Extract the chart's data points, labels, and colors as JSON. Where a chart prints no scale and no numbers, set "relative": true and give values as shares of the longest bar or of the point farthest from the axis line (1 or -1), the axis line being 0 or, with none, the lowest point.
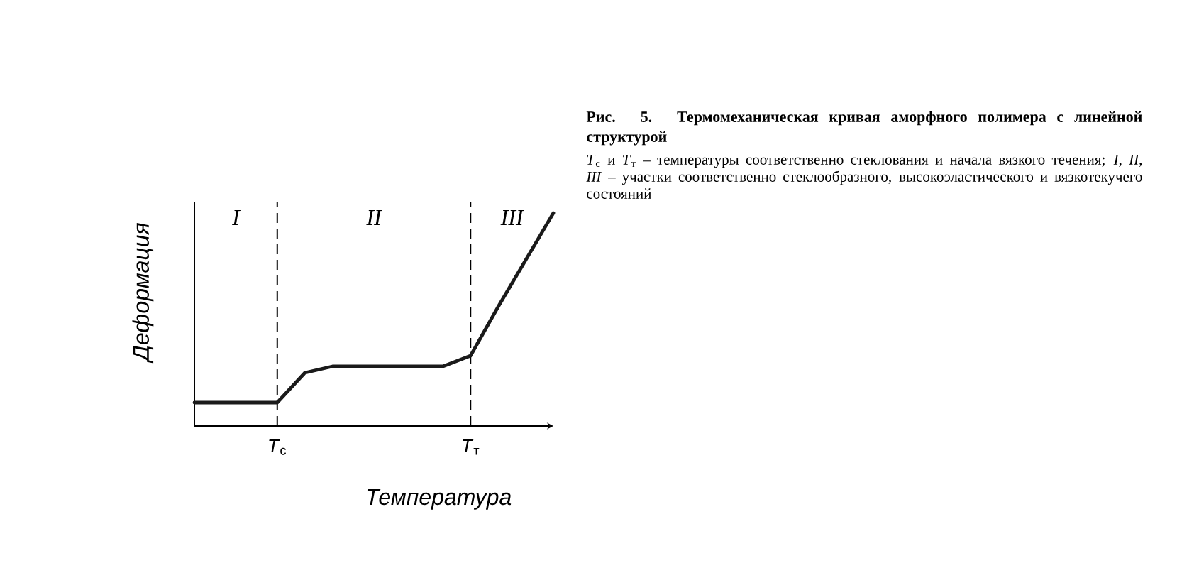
{
  "chart_data": {
    "type": "line",
    "title": "Рис. 5. Термомеханическая кривая аморфного полимера с линейной структурой",
    "subtitle": "*T*$_{с}$ и *T*$_{т}$ – температуры соответственно стеклования и начала вязкого течения; *I*, *II*, *III* – участки соответственно стеклообразного, высокоэластического и вязкотекучего состояний",
    "xlabel": "Температура",
    "ylabel": "Деформация",
    "relative": true,
    "categories": [
      null,
      null,
      null,
      "*T*$_{с}$",
      null,
      null,
      null,
      null,
      null,
      null,
      "*T*$_{т}$",
      null,
      null,
      null
    ],
    "series": [
      {
        "color": "#1a1a1a",
        "values": [
          0.11,
          0.11,
          0.11,
          0.11,
          0.25,
          0.28,
          0.28,
          0.28,
          0.28,
          0.28,
          0.33,
          0.56,
          0.78,
          1
        ]
      }
    ],
    "ref_lines": [
      {
        "axis": "x",
        "value": "*T*$_{с}$",
        "line_style": "dashed"
      },
      {
        "axis": "x",
        "value": "*T*$_{т}$",
        "line_style": "dashed"
      }
    ],
    "annotations": [
      "I",
      "II",
      "III"
    ]
  }
}
